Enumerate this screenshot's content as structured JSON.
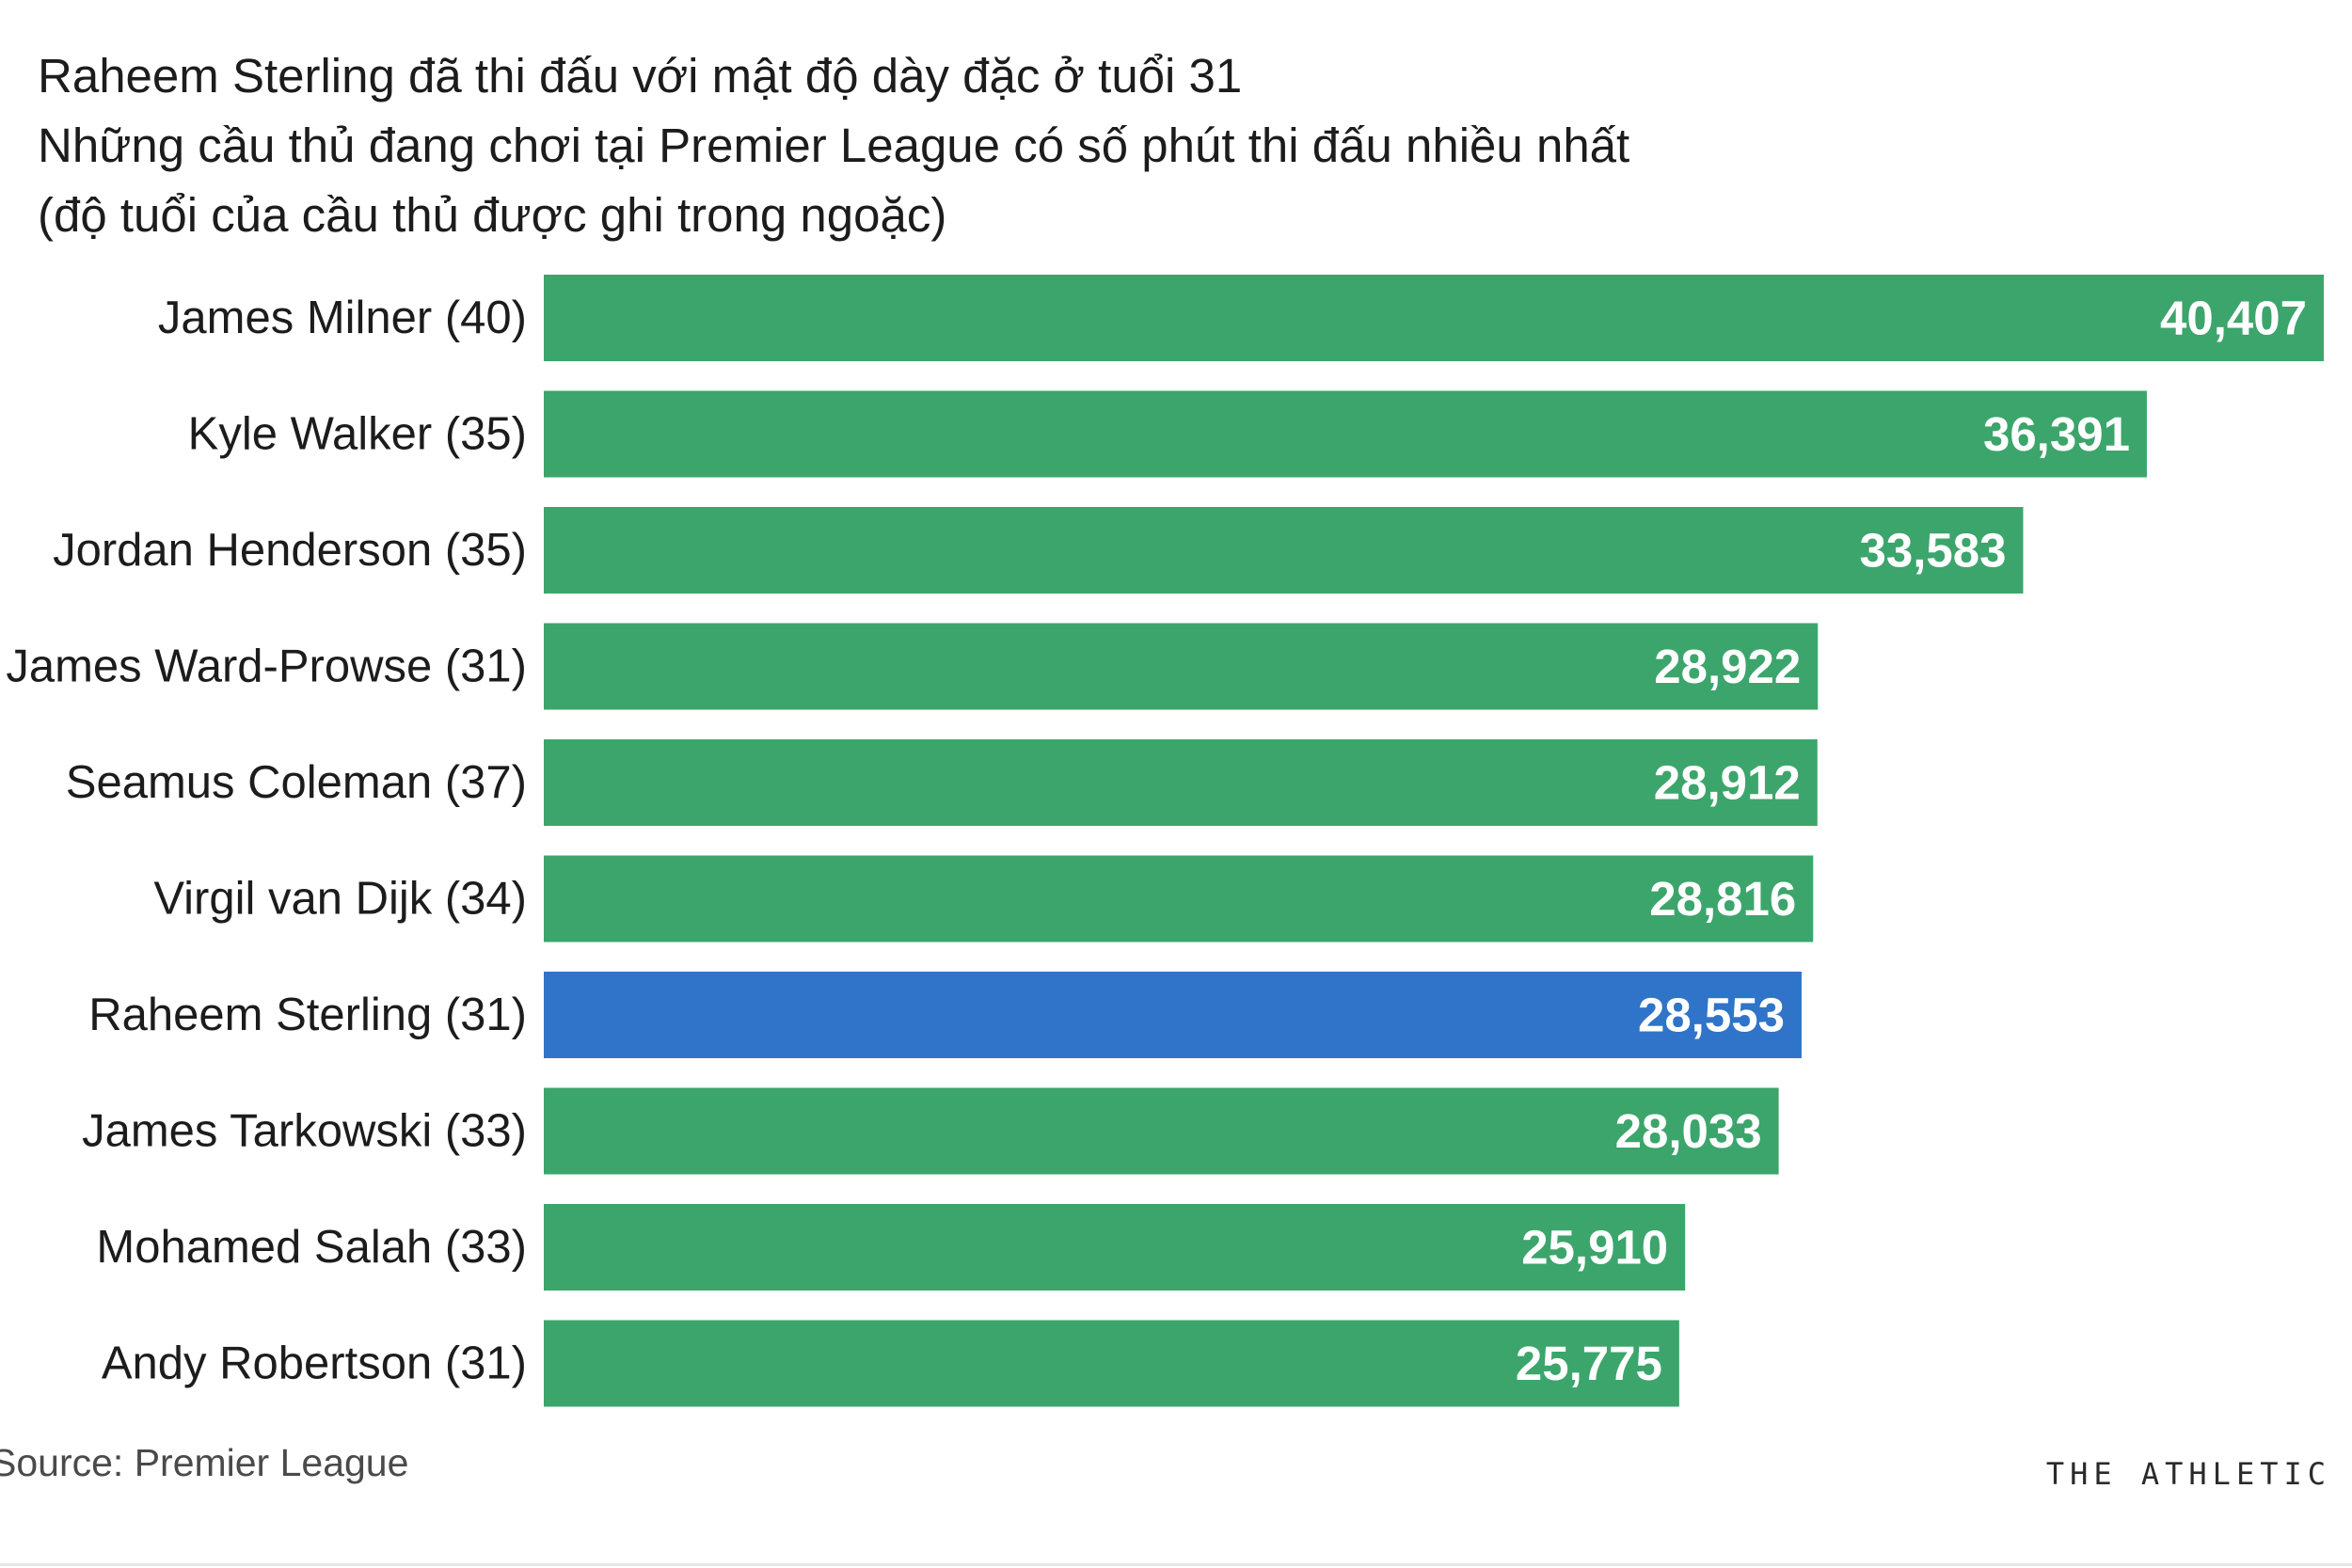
{
  "colors": {
    "bar": "#3ca56c",
    "highlight": "#2f74c8"
  },
  "chart_data": {
    "type": "bar",
    "orientation": "horizontal",
    "title_lines": [
      "Raheem Sterling đã thi đấu với mật độ dày đặc ở tuổi 31",
      "Những cầu thủ đang chơi tại Premier League có số phút thi đấu nhiều nhất",
      " (độ tuổi của cầu thủ được ghi trong ngoặc)"
    ],
    "categories": [
      "James Milner (40)",
      "Kyle Walker (35)",
      "Jordan Henderson (35)",
      "James Ward-Prowse (31)",
      "Seamus Coleman (37)",
      "Virgil van Dijk (34)",
      "Raheem Sterling (31)",
      "James Tarkowski (33)",
      "Mohamed Salah (33)",
      "Andy Robertson (31)"
    ],
    "values": [
      40407,
      36391,
      33583,
      28922,
      28912,
      28816,
      28553,
      28033,
      25910,
      25775
    ],
    "value_labels": [
      "40,407",
      "36,391",
      "33,583",
      "28,922",
      "28,912",
      "28,816",
      "28,553",
      "28,033",
      "25,910",
      "25,775"
    ],
    "highlight_category": "Raheem Sterling (31)",
    "xlim": [
      0,
      40407
    ],
    "xlabel": "",
    "ylabel": "",
    "grid": false,
    "legend": "none"
  },
  "footer": {
    "source": "Source: Premier League",
    "publisher": "THE ATHLETIC"
  }
}
